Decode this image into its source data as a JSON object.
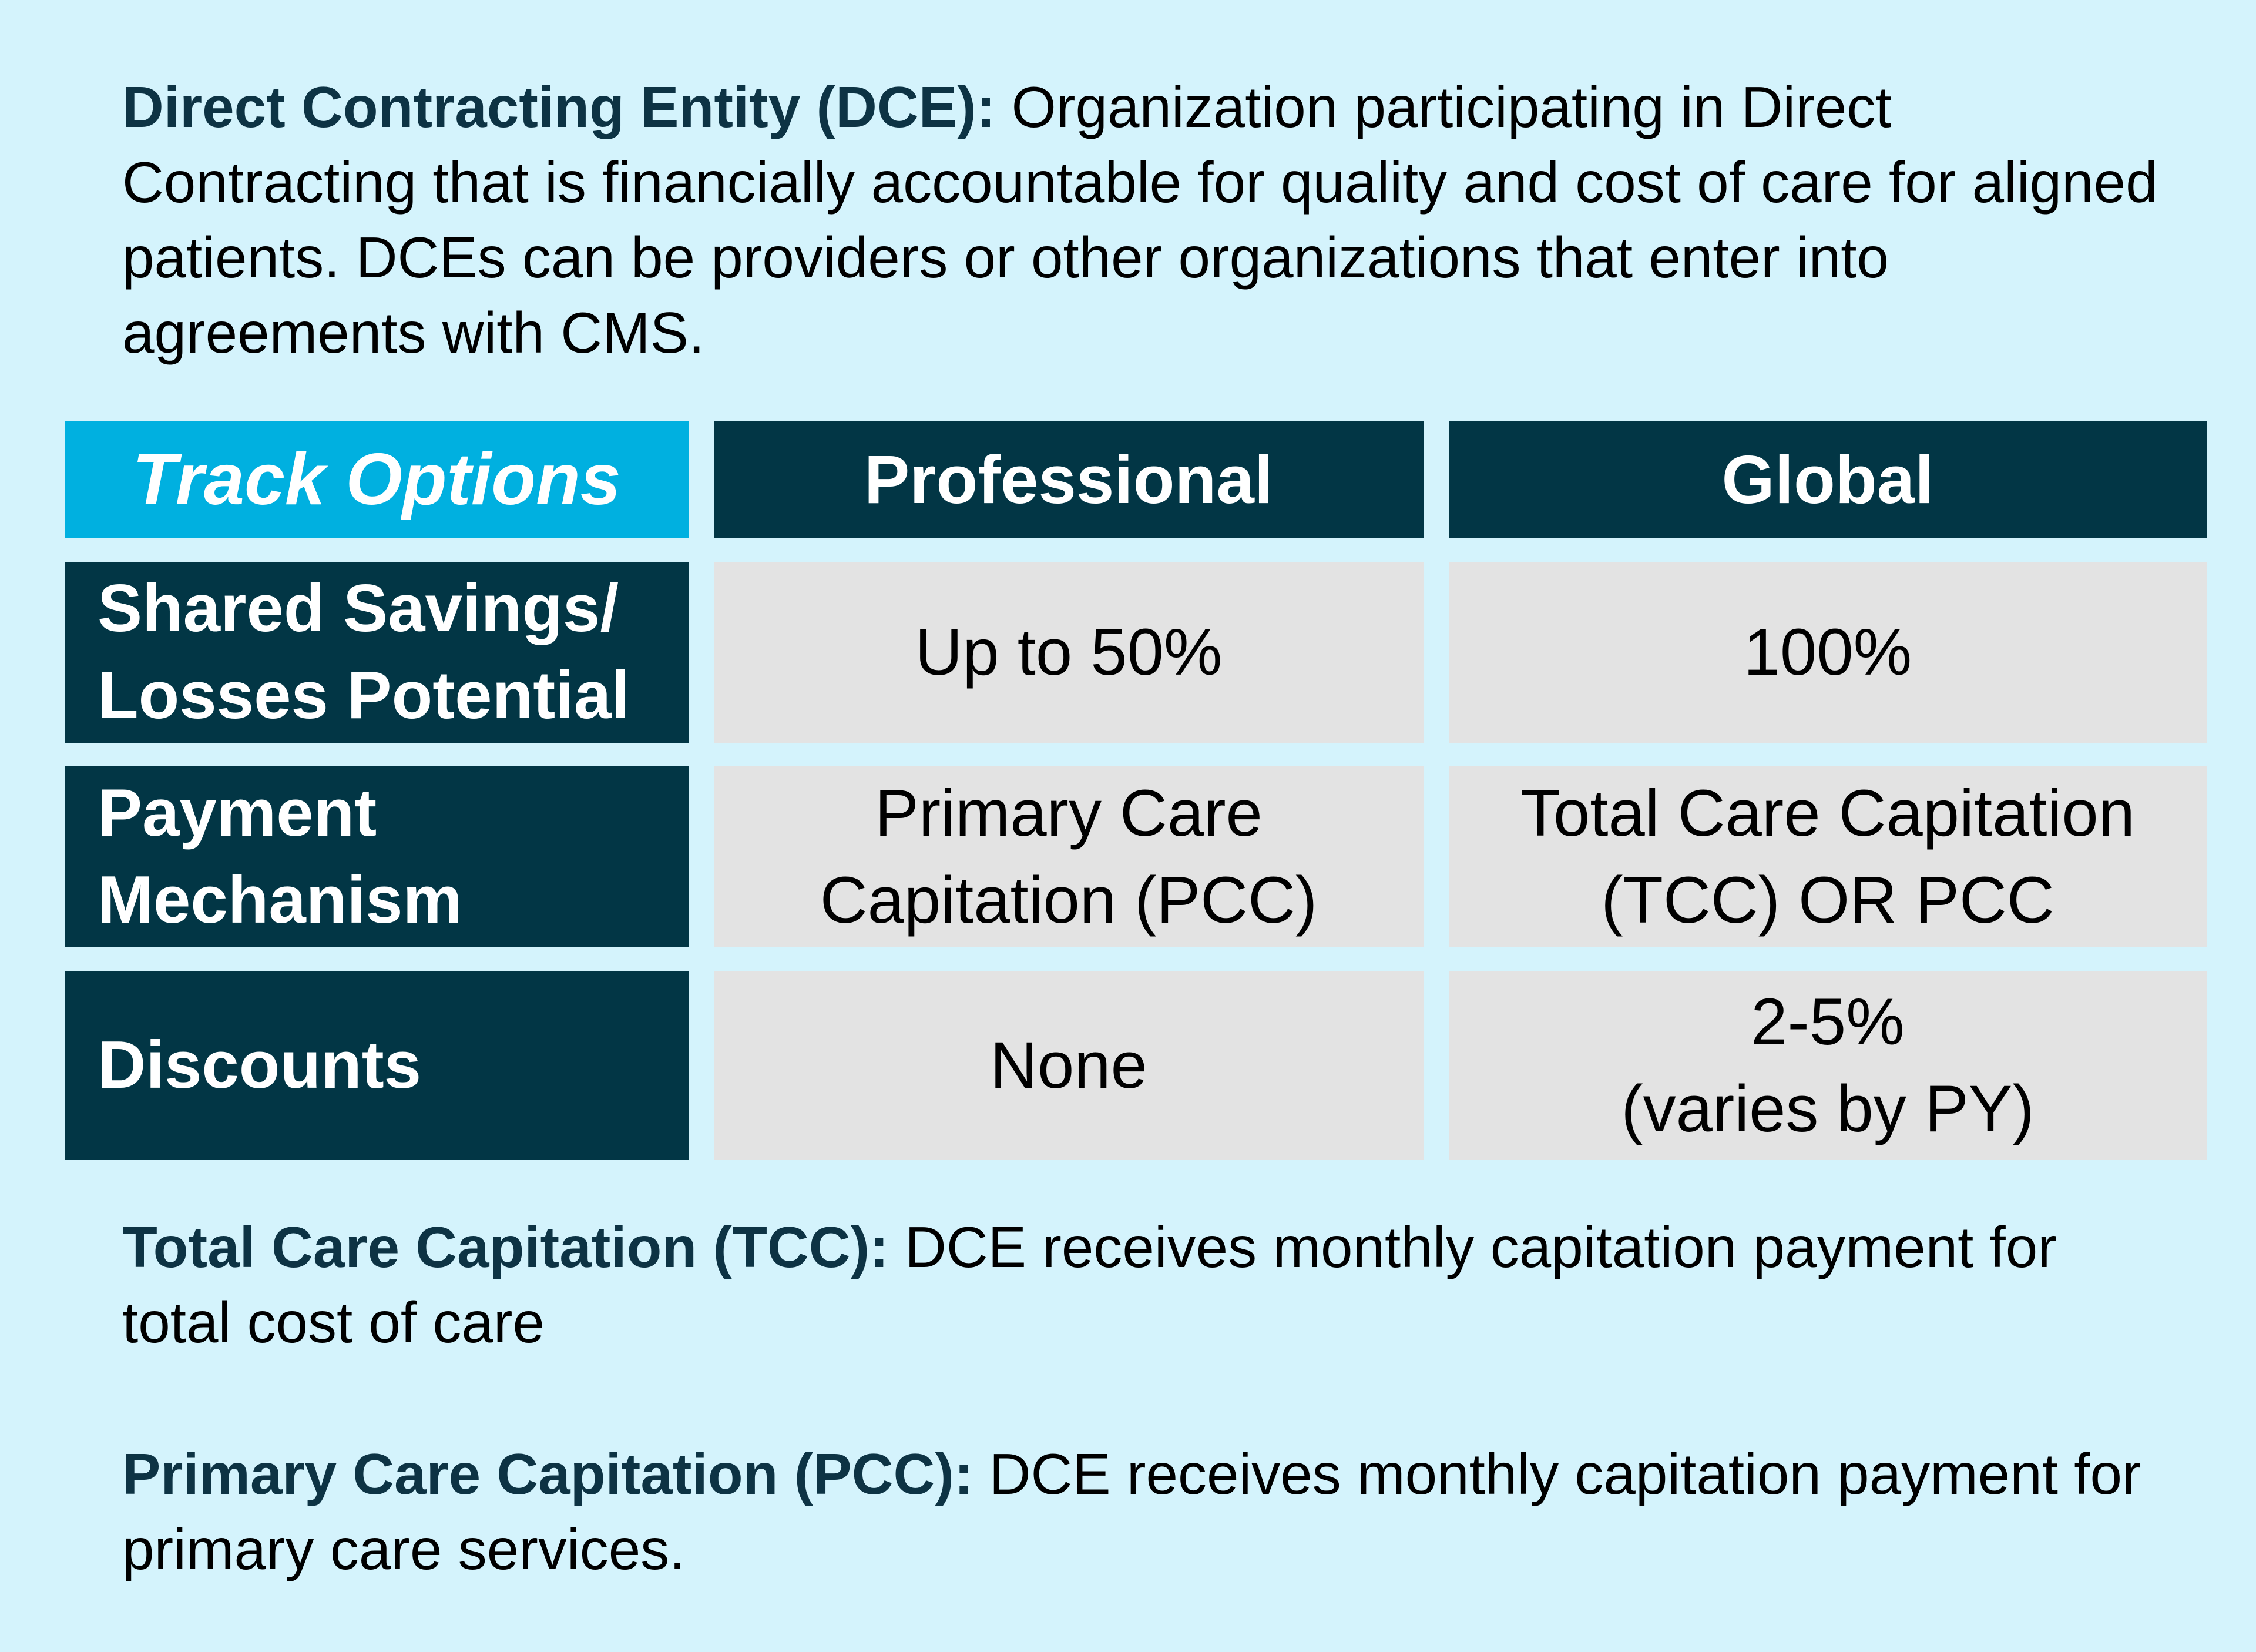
{
  "definitions": {
    "dce": {
      "term": "Direct Contracting Entity (DCE):",
      "text": "Organization participating in Direct Contracting that is financially accountable for quality and cost of care for aligned patients. DCEs can be providers or other organizations that enter into agreements with CMS."
    },
    "tcc": {
      "term": "Total Care Capitation (TCC):",
      "text": "DCE receives monthly capitation payment for total cost of care"
    },
    "pcc": {
      "term": "Primary Care Capitation (PCC):",
      "text": "DCE receives monthly capitation payment for primary care services."
    }
  },
  "table": {
    "header": {
      "track": "Track Options",
      "professional": "Professional",
      "global": "Global"
    },
    "rows": [
      {
        "label_lines": [
          "Shared Savings/",
          "Losses Potential"
        ],
        "professional_lines": [
          "Up to 50%"
        ],
        "global_lines": [
          "100%"
        ]
      },
      {
        "label_lines": [
          "Payment",
          "Mechanism"
        ],
        "professional_lines": [
          "Primary Care",
          "Capitation (PCC)"
        ],
        "global_lines": [
          "Total Care Capitation",
          "(TCC) OR PCC"
        ]
      },
      {
        "label_lines": [
          "Discounts"
        ],
        "professional_lines": [
          "None"
        ],
        "global_lines": [
          "2-5%",
          "(varies by PY)"
        ]
      }
    ]
  },
  "colors": {
    "background": "#d4f3fc",
    "header_accent": "#00b0e0",
    "header_dark": "#023645",
    "cell_gray": "#e3e3e3",
    "term_text": "#0d3344"
  }
}
